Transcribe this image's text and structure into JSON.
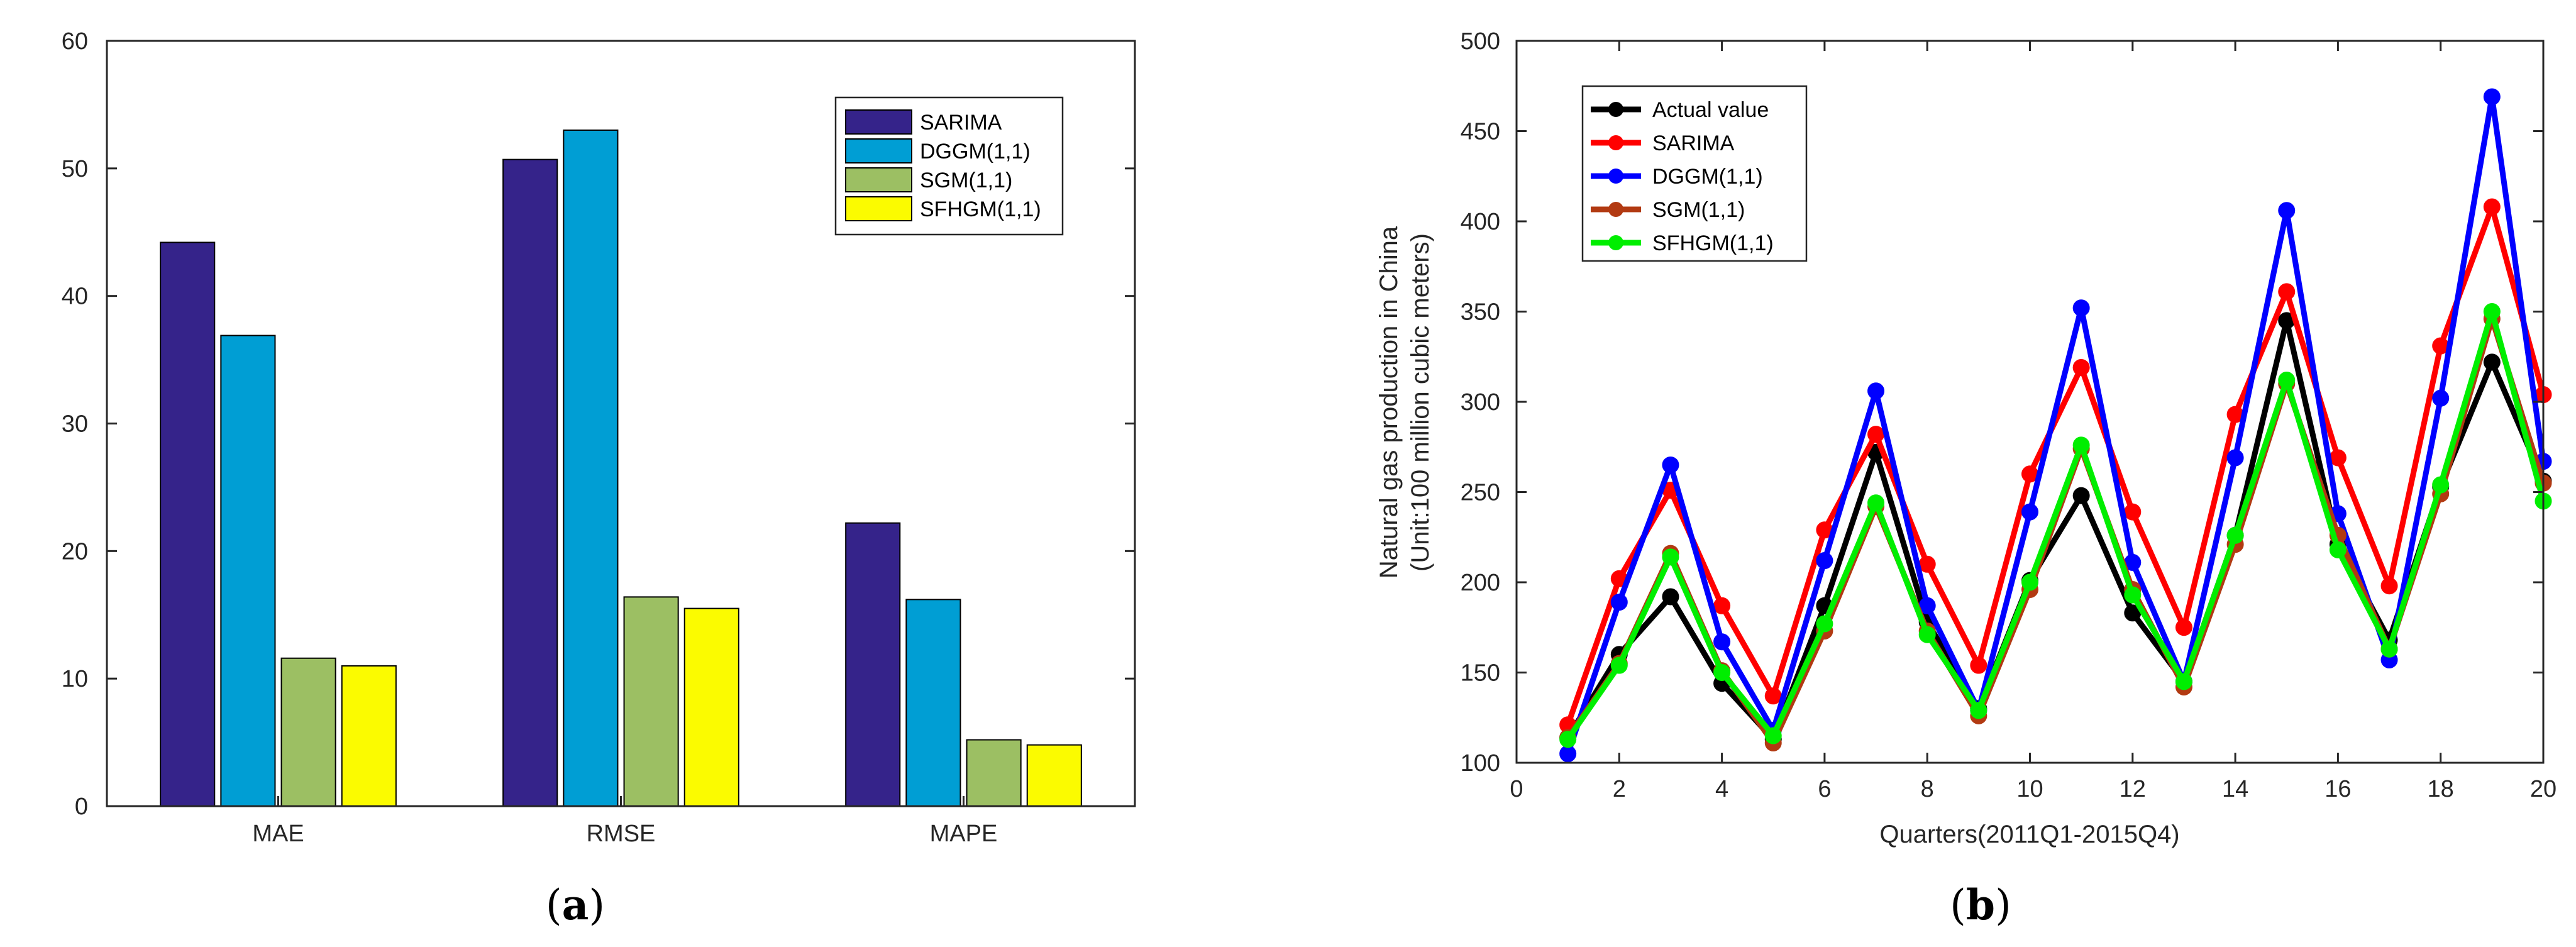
{
  "figure": {
    "panel_a_label": {
      "open": "(",
      "letter": "a",
      "close": ")"
    },
    "panel_b_label": {
      "open": "(",
      "letter": "b",
      "close": ")"
    }
  },
  "chart_data": [
    {
      "id": "a",
      "type": "bar",
      "title": "",
      "xlabel": "",
      "ylabel": "",
      "ylim": [
        0,
        60
      ],
      "yticks": [
        0,
        10,
        20,
        30,
        40,
        50,
        60
      ],
      "grid": false,
      "legend_position": "top-right",
      "categories": [
        "MAE",
        "RMSE",
        "MAPE"
      ],
      "series": [
        {
          "name": "SARIMA",
          "color": "#35238a",
          "values": [
            44.2,
            50.7,
            22.2
          ]
        },
        {
          "name": "DGGM(1,1)",
          "color": "#009ed4",
          "values": [
            36.9,
            53.0,
            16.2
          ]
        },
        {
          "name": "SGM(1,1)",
          "color": "#9cbf63",
          "values": [
            11.6,
            16.4,
            5.2
          ]
        },
        {
          "name": "SFHGM(1,1)",
          "color": "#fbfb00",
          "values": [
            11.0,
            15.5,
            4.8
          ]
        }
      ]
    },
    {
      "id": "b",
      "type": "line",
      "title": "",
      "xlabel": "Quarters(2011Q1-2015Q4)",
      "ylabel_line1": "Natural gas production in China",
      "ylabel_line2": "(Unit:100 million cubic meters)",
      "xlim": [
        0,
        20
      ],
      "ylim": [
        100,
        500
      ],
      "xticks": [
        0,
        2,
        4,
        6,
        8,
        10,
        12,
        14,
        16,
        18,
        20
      ],
      "yticks": [
        100,
        150,
        200,
        250,
        300,
        350,
        400,
        450,
        500
      ],
      "grid": false,
      "legend_position": "top-left",
      "x": [
        1,
        2,
        3,
        4,
        5,
        6,
        7,
        8,
        9,
        10,
        11,
        12,
        13,
        14,
        15,
        16,
        17,
        18,
        19,
        20
      ],
      "series": [
        {
          "name": "Actual value",
          "color": "#000000",
          "values": [
            114,
            160,
            192,
            144,
            113,
            187,
            272,
            178,
            130,
            201,
            248,
            183,
            145,
            226,
            345,
            221,
            168,
            253,
            322,
            256
          ]
        },
        {
          "name": "SARIMA",
          "color": "#ff0000",
          "values": [
            121,
            202,
            251,
            187,
            137,
            229,
            282,
            210,
            154,
            260,
            319,
            239,
            175,
            293,
            361,
            269,
            198,
            331,
            408,
            304
          ]
        },
        {
          "name": "DGGM(1,1)",
          "color": "#0000ff",
          "values": [
            105,
            189,
            265,
            167,
            118,
            212,
            306,
            187,
            129,
            239,
            352,
            211,
            145,
            269,
            406,
            238,
            157,
            302,
            469,
            267
          ]
        },
        {
          "name": "SGM(1,1)",
          "color": "#b23a12",
          "values": [
            114,
            155,
            216,
            151,
            111,
            173,
            242,
            173,
            126,
            196,
            274,
            196,
            142,
            221,
            310,
            226,
            163,
            249,
            346,
            255
          ]
        },
        {
          "name": "SFHGM(1,1)",
          "color": "#00ee00",
          "values": [
            113,
            154,
            214,
            150,
            115,
            177,
            244,
            171,
            129,
            200,
            276,
            193,
            145,
            226,
            312,
            218,
            163,
            254,
            350,
            245
          ]
        }
      ]
    }
  ]
}
